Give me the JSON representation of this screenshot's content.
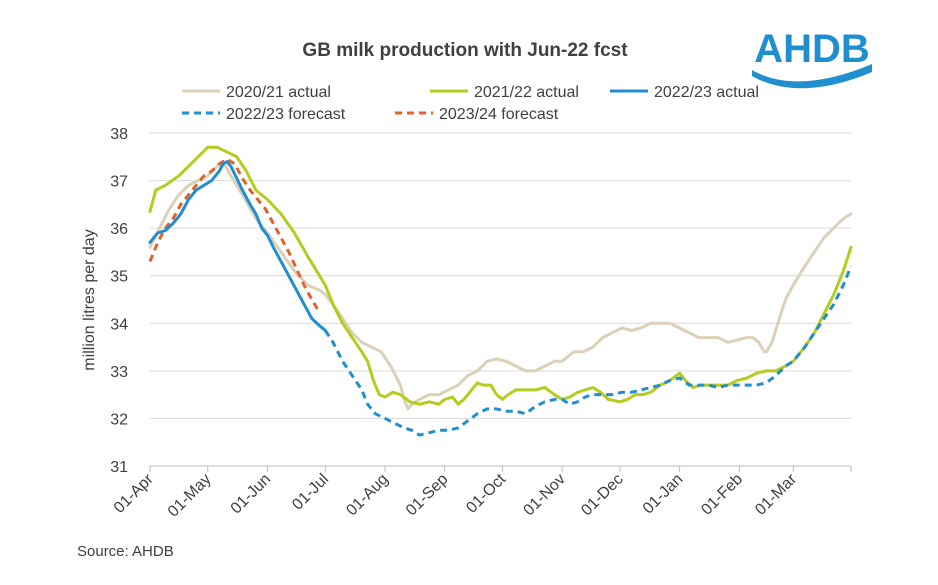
{
  "chart_data": {
    "type": "line",
    "title": "GB milk production with Jun-22 fcst",
    "ylabel": "million litres per day",
    "xlabel": "",
    "ylim": [
      31,
      38
    ],
    "yticks": [
      31,
      32,
      33,
      34,
      35,
      36,
      37,
      38
    ],
    "xlim": [
      0,
      364
    ],
    "x_tick_labels": [
      "01-Apr",
      "01-May",
      "01-Jun",
      "01-Jul",
      "01-Aug",
      "01-Sep",
      "01-Oct",
      "01-Nov",
      "01-Dec",
      "01-Jan",
      "01-Feb",
      "01-Mar"
    ],
    "x_tick_days": [
      0,
      30,
      61,
      91,
      122,
      153,
      183,
      214,
      244,
      275,
      306,
      334
    ],
    "x_unit": "days from 01-Apr",
    "grid": "horizontal",
    "legend_position": "top",
    "series": [
      {
        "name": "2020/21 actual",
        "color": "#ddd0b8",
        "dash": "solid",
        "points": [
          [
            0,
            35.6
          ],
          [
            5,
            36.0
          ],
          [
            10,
            36.4
          ],
          [
            15,
            36.7
          ],
          [
            20,
            36.9
          ],
          [
            25,
            37.0
          ],
          [
            30,
            37.1
          ],
          [
            35,
            37.3
          ],
          [
            38,
            37.4
          ],
          [
            42,
            37.1
          ],
          [
            48,
            36.7
          ],
          [
            55,
            36.2
          ],
          [
            61,
            35.9
          ],
          [
            68,
            35.5
          ],
          [
            75,
            35.1
          ],
          [
            82,
            34.8
          ],
          [
            88,
            34.7
          ],
          [
            91,
            34.6
          ],
          [
            95,
            34.4
          ],
          [
            100,
            34.1
          ],
          [
            105,
            33.8
          ],
          [
            110,
            33.6
          ],
          [
            115,
            33.5
          ],
          [
            120,
            33.4
          ],
          [
            125,
            33.1
          ],
          [
            130,
            32.7
          ],
          [
            132,
            32.4
          ],
          [
            134,
            32.2
          ],
          [
            136,
            32.3
          ],
          [
            140,
            32.4
          ],
          [
            145,
            32.5
          ],
          [
            150,
            32.5
          ],
          [
            155,
            32.6
          ],
          [
            160,
            32.7
          ],
          [
            165,
            32.9
          ],
          [
            170,
            33.0
          ],
          [
            175,
            33.2
          ],
          [
            180,
            33.25
          ],
          [
            185,
            33.2
          ],
          [
            190,
            33.1
          ],
          [
            195,
            33.0
          ],
          [
            200,
            33.0
          ],
          [
            205,
            33.1
          ],
          [
            210,
            33.2
          ],
          [
            214,
            33.2
          ],
          [
            220,
            33.4
          ],
          [
            225,
            33.4
          ],
          [
            230,
            33.5
          ],
          [
            235,
            33.7
          ],
          [
            240,
            33.8
          ],
          [
            245,
            33.9
          ],
          [
            250,
            33.85
          ],
          [
            255,
            33.9
          ],
          [
            260,
            34.0
          ],
          [
            265,
            34.0
          ],
          [
            270,
            34.0
          ],
          [
            275,
            33.9
          ],
          [
            280,
            33.8
          ],
          [
            285,
            33.7
          ],
          [
            290,
            33.7
          ],
          [
            295,
            33.7
          ],
          [
            300,
            33.6
          ],
          [
            305,
            33.65
          ],
          [
            310,
            33.7
          ],
          [
            313,
            33.7
          ],
          [
            316,
            33.6
          ],
          [
            319,
            33.4
          ],
          [
            320,
            33.4
          ],
          [
            323,
            33.6
          ],
          [
            326,
            34.0
          ],
          [
            330,
            34.5
          ],
          [
            334,
            34.8
          ],
          [
            340,
            35.2
          ],
          [
            345,
            35.5
          ],
          [
            350,
            35.8
          ],
          [
            355,
            36.0
          ],
          [
            360,
            36.2
          ],
          [
            364,
            36.3
          ]
        ]
      },
      {
        "name": "2021/22 actual",
        "color": "#b5cc1e",
        "dash": "solid",
        "points": [
          [
            0,
            36.35
          ],
          [
            3,
            36.8
          ],
          [
            8,
            36.9
          ],
          [
            15,
            37.1
          ],
          [
            20,
            37.3
          ],
          [
            25,
            37.5
          ],
          [
            30,
            37.7
          ],
          [
            35,
            37.7
          ],
          [
            40,
            37.6
          ],
          [
            45,
            37.5
          ],
          [
            50,
            37.2
          ],
          [
            55,
            36.8
          ],
          [
            61,
            36.6
          ],
          [
            68,
            36.3
          ],
          [
            75,
            35.9
          ],
          [
            82,
            35.4
          ],
          [
            88,
            35.0
          ],
          [
            91,
            34.8
          ],
          [
            95,
            34.4
          ],
          [
            100,
            34.0
          ],
          [
            105,
            33.7
          ],
          [
            110,
            33.4
          ],
          [
            113,
            33.2
          ],
          [
            116,
            32.8
          ],
          [
            119,
            32.5
          ],
          [
            122,
            32.45
          ],
          [
            126,
            32.55
          ],
          [
            130,
            32.5
          ],
          [
            135,
            32.35
          ],
          [
            140,
            32.3
          ],
          [
            145,
            32.35
          ],
          [
            150,
            32.3
          ],
          [
            153,
            32.4
          ],
          [
            157,
            32.45
          ],
          [
            160,
            32.3
          ],
          [
            163,
            32.4
          ],
          [
            167,
            32.6
          ],
          [
            170,
            32.75
          ],
          [
            173,
            32.7
          ],
          [
            177,
            32.7
          ],
          [
            180,
            32.5
          ],
          [
            183,
            32.4
          ],
          [
            186,
            32.5
          ],
          [
            190,
            32.6
          ],
          [
            195,
            32.6
          ],
          [
            200,
            32.6
          ],
          [
            205,
            32.65
          ],
          [
            210,
            32.5
          ],
          [
            214,
            32.4
          ],
          [
            218,
            32.45
          ],
          [
            222,
            32.55
          ],
          [
            226,
            32.6
          ],
          [
            230,
            32.65
          ],
          [
            234,
            32.55
          ],
          [
            238,
            32.4
          ],
          [
            244,
            32.35
          ],
          [
            248,
            32.4
          ],
          [
            252,
            32.5
          ],
          [
            256,
            32.5
          ],
          [
            260,
            32.55
          ],
          [
            265,
            32.7
          ],
          [
            270,
            32.8
          ],
          [
            275,
            32.95
          ],
          [
            278,
            32.8
          ],
          [
            282,
            32.65
          ],
          [
            286,
            32.7
          ],
          [
            290,
            32.7
          ],
          [
            295,
            32.7
          ],
          [
            300,
            32.7
          ],
          [
            305,
            32.8
          ],
          [
            310,
            32.85
          ],
          [
            315,
            32.95
          ],
          [
            320,
            33.0
          ],
          [
            325,
            33.0
          ],
          [
            330,
            33.1
          ],
          [
            334,
            33.2
          ],
          [
            340,
            33.5
          ],
          [
            345,
            33.8
          ],
          [
            350,
            34.2
          ],
          [
            355,
            34.6
          ],
          [
            360,
            35.1
          ],
          [
            364,
            35.6
          ]
        ]
      },
      {
        "name": "2022/23 actual",
        "color": "#1f8fcf",
        "dash": "solid",
        "points": [
          [
            0,
            35.7
          ],
          [
            4,
            35.9
          ],
          [
            8,
            35.95
          ],
          [
            12,
            36.1
          ],
          [
            16,
            36.3
          ],
          [
            20,
            36.6
          ],
          [
            24,
            36.8
          ],
          [
            28,
            36.9
          ],
          [
            32,
            37.0
          ],
          [
            36,
            37.2
          ],
          [
            38,
            37.35
          ],
          [
            40,
            37.4
          ],
          [
            42,
            37.3
          ],
          [
            45,
            37.05
          ],
          [
            48,
            36.8
          ],
          [
            52,
            36.5
          ],
          [
            55,
            36.3
          ],
          [
            58,
            36.0
          ],
          [
            61,
            35.85
          ],
          [
            64,
            35.6
          ],
          [
            68,
            35.3
          ],
          [
            72,
            35.0
          ],
          [
            76,
            34.7
          ],
          [
            80,
            34.4
          ],
          [
            84,
            34.1
          ],
          [
            88,
            33.95
          ],
          [
            91,
            33.85
          ]
        ]
      },
      {
        "name": "2022/23 forecast",
        "color": "#1f8fcf",
        "dash": "dashed",
        "points": [
          [
            91,
            33.85
          ],
          [
            95,
            33.6
          ],
          [
            100,
            33.2
          ],
          [
            105,
            32.9
          ],
          [
            110,
            32.6
          ],
          [
            113,
            32.3
          ],
          [
            117,
            32.1
          ],
          [
            122,
            32.0
          ],
          [
            127,
            31.9
          ],
          [
            132,
            31.8
          ],
          [
            136,
            31.75
          ],
          [
            140,
            31.65
          ],
          [
            145,
            31.7
          ],
          [
            150,
            31.75
          ],
          [
            155,
            31.75
          ],
          [
            160,
            31.8
          ],
          [
            165,
            31.95
          ],
          [
            170,
            32.1
          ],
          [
            175,
            32.2
          ],
          [
            180,
            32.2
          ],
          [
            185,
            32.15
          ],
          [
            190,
            32.15
          ],
          [
            195,
            32.1
          ],
          [
            200,
            32.25
          ],
          [
            205,
            32.35
          ],
          [
            210,
            32.4
          ],
          [
            214,
            32.4
          ],
          [
            218,
            32.3
          ],
          [
            222,
            32.35
          ],
          [
            226,
            32.45
          ],
          [
            230,
            32.5
          ],
          [
            235,
            32.5
          ],
          [
            240,
            32.5
          ],
          [
            245,
            32.55
          ],
          [
            250,
            32.55
          ],
          [
            255,
            32.6
          ],
          [
            260,
            32.65
          ],
          [
            265,
            32.7
          ],
          [
            270,
            32.8
          ],
          [
            275,
            32.85
          ],
          [
            280,
            32.7
          ],
          [
            285,
            32.7
          ],
          [
            290,
            32.7
          ],
          [
            295,
            32.65
          ],
          [
            300,
            32.7
          ],
          [
            305,
            32.7
          ],
          [
            310,
            32.7
          ],
          [
            315,
            32.7
          ],
          [
            320,
            32.75
          ],
          [
            325,
            32.9
          ],
          [
            330,
            33.1
          ],
          [
            334,
            33.2
          ],
          [
            340,
            33.5
          ],
          [
            345,
            33.8
          ],
          [
            350,
            34.1
          ],
          [
            355,
            34.4
          ],
          [
            360,
            34.8
          ],
          [
            364,
            35.2
          ]
        ]
      },
      {
        "name": "2023/24 forecast",
        "color": "#e0632b",
        "dash": "dashed",
        "points": [
          [
            0,
            35.3
          ],
          [
            4,
            35.7
          ],
          [
            8,
            36.0
          ],
          [
            12,
            36.2
          ],
          [
            16,
            36.5
          ],
          [
            20,
            36.7
          ],
          [
            24,
            36.9
          ],
          [
            28,
            37.1
          ],
          [
            32,
            37.2
          ],
          [
            36,
            37.35
          ],
          [
            40,
            37.45
          ],
          [
            44,
            37.35
          ],
          [
            48,
            37.05
          ],
          [
            52,
            36.8
          ],
          [
            56,
            36.6
          ],
          [
            60,
            36.4
          ],
          [
            64,
            36.1
          ],
          [
            68,
            35.8
          ],
          [
            72,
            35.5
          ],
          [
            76,
            35.15
          ],
          [
            80,
            34.8
          ],
          [
            84,
            34.5
          ],
          [
            87,
            34.3
          ]
        ]
      }
    ]
  },
  "logo": {
    "text": "AHDB",
    "color": "#1f8fcf"
  },
  "source": "Source:  AHDB"
}
